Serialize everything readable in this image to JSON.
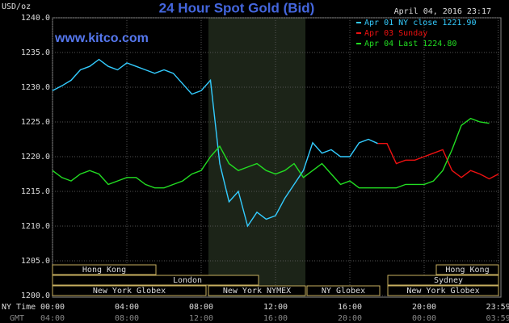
{
  "chart_data": {
    "type": "line",
    "title": "24 Hour Spot Gold (Bid)",
    "site": "www.kitco.com",
    "timestamp": "April 04, 2016 23:17",
    "y_label": "USD/oz",
    "x_label": "NY Time",
    "x2_label": "GMT",
    "x": [
      0,
      0.5,
      1,
      1.5,
      2,
      2.5,
      3,
      3.5,
      4,
      4.5,
      5,
      5.5,
      6,
      6.5,
      7,
      7.5,
      8,
      8.5,
      9,
      9.5,
      10,
      10.5,
      11,
      11.5,
      12,
      12.5,
      13,
      13.5,
      14,
      14.5,
      15,
      15.5,
      16,
      16.5,
      17,
      17.5,
      18,
      18.5,
      19,
      19.5,
      20,
      20.5,
      21,
      21.5,
      22,
      22.5,
      23,
      23.5,
      24
    ],
    "series": [
      {
        "name": "Apr 01 NY close 1221.90",
        "color": "#33ccff",
        "values": [
          1229.5,
          1230.2,
          1231,
          1232.5,
          1233,
          1234,
          1233,
          1232.5,
          1233.5,
          1233,
          1232.5,
          1232,
          1232.5,
          1232,
          1230.5,
          1229,
          1229.5,
          1231,
          1219,
          1213.5,
          1215,
          1210,
          1212,
          1211,
          1211.5,
          1214,
          1216,
          1218,
          1222,
          1220.5,
          1221,
          1220,
          1220,
          1222,
          1222.5,
          1221.9,
          null,
          null,
          null,
          null,
          null,
          null,
          null,
          null,
          null,
          null,
          null,
          null,
          null
        ]
      },
      {
        "name": "Apr 03 Sunday",
        "color": "#ee1111",
        "values": [
          null,
          null,
          null,
          null,
          null,
          null,
          null,
          null,
          null,
          null,
          null,
          null,
          null,
          null,
          null,
          null,
          null,
          null,
          null,
          null,
          null,
          null,
          null,
          null,
          null,
          null,
          null,
          null,
          null,
          null,
          null,
          null,
          null,
          null,
          null,
          1221.9,
          1221.9,
          1219,
          1219.5,
          1219.5,
          1220,
          1220.5,
          1221,
          1218,
          1217,
          1218,
          1217.5,
          1216.8,
          1217.5
        ]
      },
      {
        "name": "Apr 04 Last 1224.80",
        "color": "#22dd22",
        "values": [
          1218,
          1217,
          1216.5,
          1217.5,
          1218,
          1217.5,
          1216,
          1216.5,
          1217,
          1217,
          1216,
          1215.5,
          1215.5,
          1216,
          1216.5,
          1217.5,
          1218,
          1220,
          1221.5,
          1219,
          1218,
          1218.5,
          1219,
          1218,
          1217.5,
          1218,
          1219,
          1217,
          1218,
          1219,
          1217.5,
          1216,
          1216.5,
          1215.5,
          1215.5,
          1215.5,
          1215.5,
          1215.5,
          1216,
          1216,
          1216,
          1216.5,
          1218,
          1221,
          1224.5,
          1225.5,
          1225,
          1224.8,
          null
        ]
      }
    ],
    "xlim": [
      0,
      24
    ],
    "xticks": [
      {
        "value": 0,
        "label": "00:00"
      },
      {
        "value": 4,
        "label": "04:00"
      },
      {
        "value": 8,
        "label": "08:00"
      },
      {
        "value": 12,
        "label": "12:00"
      },
      {
        "value": 16,
        "label": "16:00"
      },
      {
        "value": 20,
        "label": "20:00"
      },
      {
        "value": 23.983,
        "label": "23:59"
      }
    ],
    "gmt_labels": [
      "04:00",
      "08:00",
      "12:00",
      "16:00",
      "20:00",
      "00:00",
      "03:59"
    ],
    "ylim": [
      1200,
      1240
    ],
    "yticks": [
      {
        "value": 1200,
        "label": "1200.0"
      },
      {
        "value": 1205,
        "label": "1205.0"
      },
      {
        "value": 1210,
        "label": "1210.0"
      },
      {
        "value": 1215,
        "label": "1215.0"
      },
      {
        "value": 1220,
        "label": "1220.0"
      },
      {
        "value": 1225,
        "label": "1225.0"
      },
      {
        "value": 1230,
        "label": "1230.0"
      },
      {
        "value": 1235,
        "label": "1235.0"
      },
      {
        "value": 1240,
        "label": "1240.0"
      }
    ],
    "grid": true,
    "sessions": [
      "Hong Kong",
      "London",
      "New York Globex",
      "New York NYMEX",
      "NY Globex",
      "Sydney",
      "Hong Kong",
      "New York Globex"
    ]
  }
}
